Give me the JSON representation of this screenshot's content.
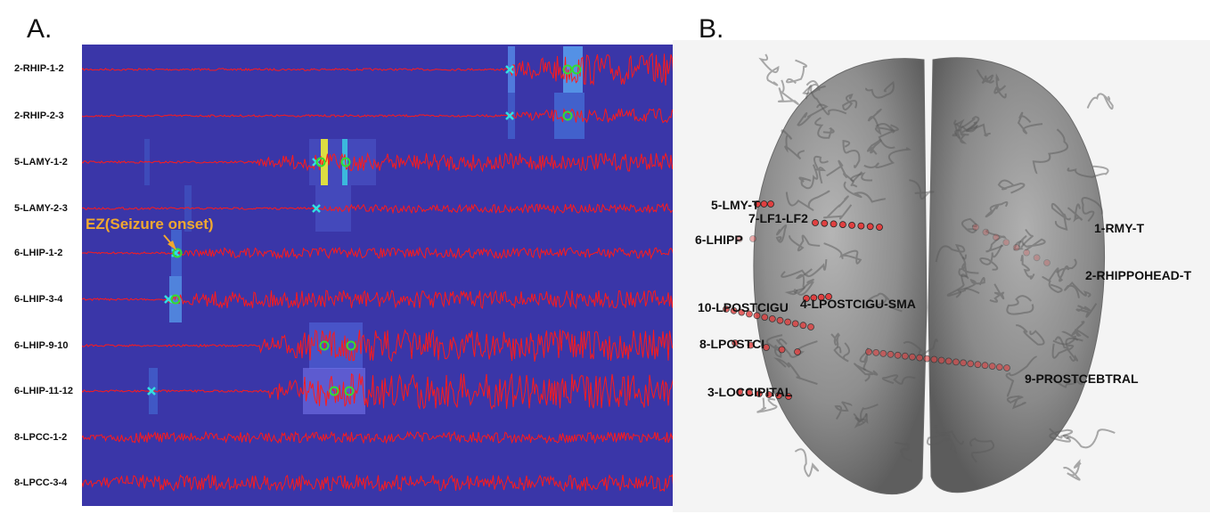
{
  "panel_a_label": "A.",
  "panel_b_label": "B.",
  "ez_annotation": "EZ(Seizure onset)",
  "colors": {
    "heatmap_bg": "#3a36a8",
    "trace": "#ff1a1a",
    "onset_marker": "#33e0e0",
    "spread_marker": "#33dd33",
    "annotation": "#f0a830",
    "brain": "#8a8a8a"
  },
  "channels": [
    {
      "label": "2-RHIP-1-2"
    },
    {
      "label": "2-RHIP-2-3"
    },
    {
      "label": "5-LAMY-1-2"
    },
    {
      "label": "5-LAMY-2-3"
    },
    {
      "label": "6-LHIP-1-2"
    },
    {
      "label": "6-LHIP-3-4"
    },
    {
      "label": "6-LHIP-9-10"
    },
    {
      "label": "6-LHIP-11-12"
    },
    {
      "label": "8-LPCC-1-2"
    },
    {
      "label": "8-LPCC-3-4"
    }
  ],
  "electrodes": [
    {
      "label": "5-LMY-T"
    },
    {
      "label": "7-LF1-LF2"
    },
    {
      "label": "6-LHIPP"
    },
    {
      "label": "1-RMY-T"
    },
    {
      "label": "2-RHIPPOHEAD-T"
    },
    {
      "label": "10-LPOSTCIGU"
    },
    {
      "label": "4-LPOSTCIGU-SMA"
    },
    {
      "label": "8-LPOSTCI"
    },
    {
      "label": "9-PROSTCEBTRAL"
    },
    {
      "label": "3-LOCCIPITAL"
    }
  ]
}
